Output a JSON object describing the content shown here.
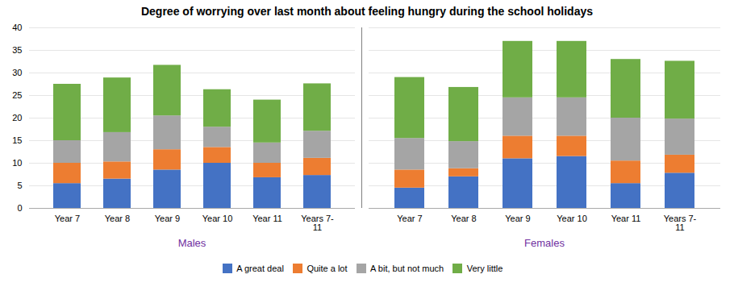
{
  "chart_data": [
    {
      "type": "bar",
      "stacked": true,
      "title": "Degree of worrying over last month about feeling hungry during the school holidays",
      "xlabel": "Males",
      "categories": [
        "Year 7",
        "Year 8",
        "Year 9",
        "Year 10",
        "Year 11",
        "Years 7-\n11"
      ],
      "series": [
        {
          "name": "A great deal",
          "color": "#4472C4",
          "values": [
            5.5,
            6.5,
            8.5,
            10.0,
            6.8,
            7.3
          ]
        },
        {
          "name": "Quite a lot",
          "color": "#ED7D31",
          "values": [
            4.5,
            3.8,
            4.5,
            3.5,
            3.2,
            3.8
          ]
        },
        {
          "name": "A bit, but not much",
          "color": "#A5A5A5",
          "values": [
            5.0,
            6.5,
            7.5,
            4.5,
            4.5,
            6.0
          ]
        },
        {
          "name": "Very little",
          "color": "#70AD47",
          "values": [
            12.5,
            12.1,
            11.2,
            8.3,
            9.5,
            10.5
          ]
        }
      ],
      "ylim": [
        0,
        40
      ],
      "yticks": [
        0,
        5,
        10,
        15,
        20,
        25,
        30,
        35,
        40
      ],
      "grid": true,
      "legend": "bottom"
    },
    {
      "type": "bar",
      "stacked": true,
      "xlabel": "Females",
      "categories": [
        "Year 7",
        "Year 8",
        "Year 9",
        "Year 10",
        "Year 11",
        "Years 7-\n11"
      ],
      "series": [
        {
          "name": "A great deal",
          "color": "#4472C4",
          "values": [
            4.5,
            7.0,
            11.0,
            11.5,
            5.5,
            7.8
          ]
        },
        {
          "name": "Quite a lot",
          "color": "#ED7D31",
          "values": [
            4.0,
            1.8,
            5.0,
            4.5,
            5.0,
            4.0
          ]
        },
        {
          "name": "A bit, but not much",
          "color": "#A5A5A5",
          "values": [
            7.0,
            6.0,
            8.5,
            8.5,
            9.5,
            8.0
          ]
        },
        {
          "name": "Very little",
          "color": "#70AD47",
          "values": [
            13.5,
            12.0,
            12.5,
            12.5,
            13.0,
            12.8
          ]
        }
      ],
      "ylim": [
        0,
        40
      ],
      "yticks": [
        0,
        5,
        10,
        15,
        20,
        25,
        30,
        35,
        40
      ],
      "grid": true,
      "tick_labels": "x"
    }
  ]
}
